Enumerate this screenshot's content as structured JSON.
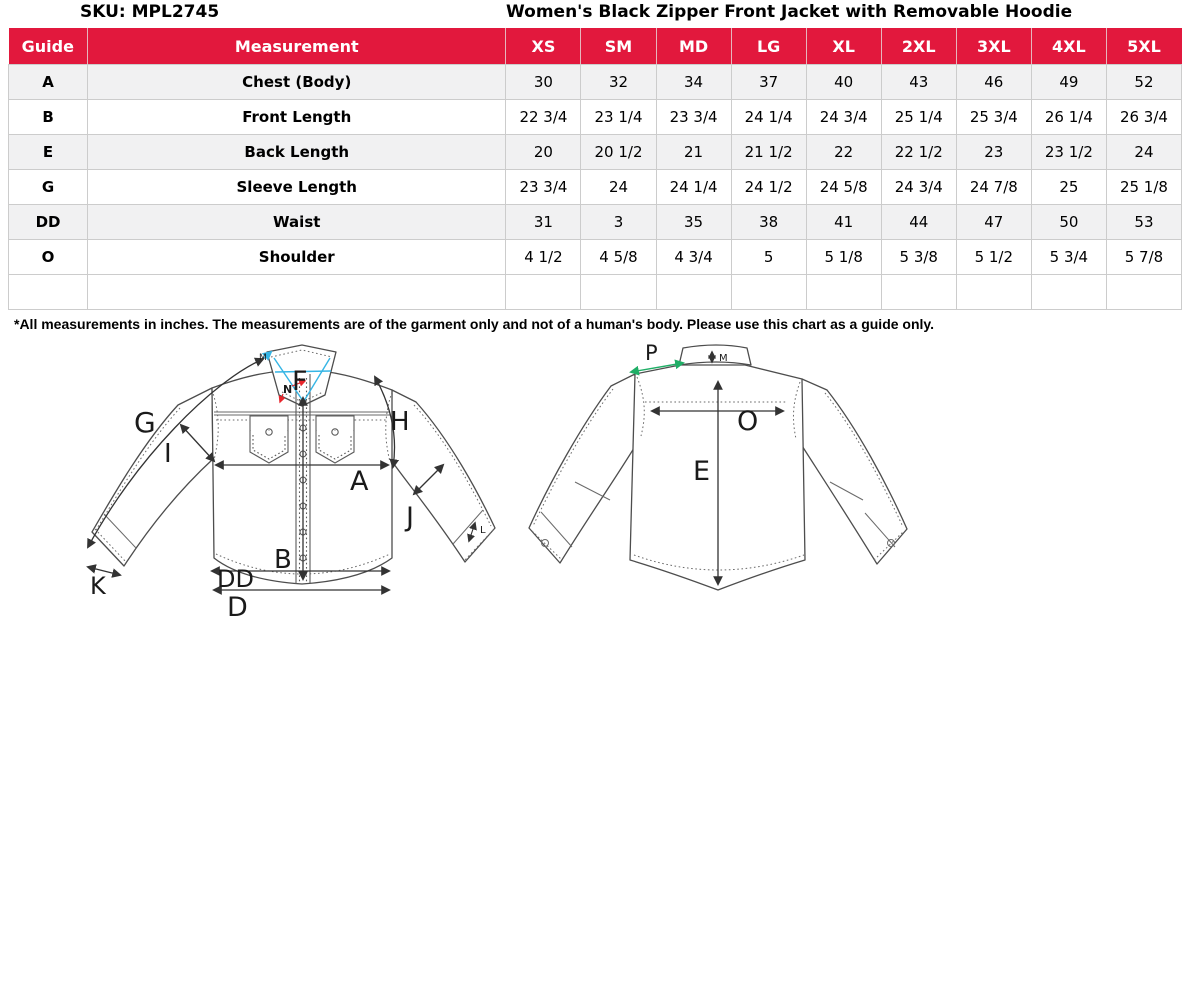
{
  "header": {
    "sku": "SKU: MPL2745",
    "title": "Women's Black Zipper Front Jacket with Removable Hoodie"
  },
  "table": {
    "columns": [
      "Guide",
      "Measurement",
      "XS",
      "SM",
      "MD",
      "LG",
      "XL",
      "2XL",
      "3XL",
      "4XL",
      "5XL"
    ],
    "rows": [
      {
        "guide": "A",
        "measurement": "Chest (Body)",
        "values": [
          "30",
          "32",
          "34",
          "37",
          "40",
          "43",
          "46",
          "49",
          "52"
        ]
      },
      {
        "guide": "B",
        "measurement": "Front Length",
        "values": [
          "22 3/4",
          "23 1/4",
          "23 3/4",
          "24 1/4",
          "24 3/4",
          "25 1/4",
          "25 3/4",
          "26 1/4",
          "26 3/4"
        ]
      },
      {
        "guide": "E",
        "measurement": "Back Length",
        "values": [
          "20",
          "20 1/2",
          "21",
          "21 1/2",
          "22",
          "22 1/2",
          "23",
          "23 1/2",
          "24"
        ]
      },
      {
        "guide": "G",
        "measurement": "Sleeve Length",
        "values": [
          "23 3/4",
          "24",
          "24 1/4",
          "24 1/2",
          "24 5/8",
          "24 3/4",
          "24 7/8",
          "25",
          "25 1/8"
        ]
      },
      {
        "guide": "DD",
        "measurement": "Waist",
        "values": [
          "31",
          "3",
          "35",
          "38",
          "41",
          "44",
          "47",
          "50",
          "53"
        ]
      },
      {
        "guide": "O",
        "measurement": "Shoulder",
        "values": [
          "4 1/2",
          "4 5/8",
          "4 3/4",
          "5",
          "5 1/8",
          "5 3/8",
          "5 1/2",
          "5 3/4",
          "5 7/8"
        ]
      },
      {
        "guide": "",
        "measurement": "",
        "values": [
          "",
          "",
          "",
          "",
          "",
          "",
          "",
          "",
          ""
        ]
      }
    ],
    "footnote": "*All measurements in inches. The measurements are of the garment only and not of a human's body. Please use this chart as a guide only."
  },
  "colors": {
    "header_bg": "#E2183D",
    "row_alt": "#F1F1F2",
    "cell_border": "#CCCCCC",
    "drawing_line": "#4D4D4D",
    "cyan_label": "#35B5E5",
    "green_label": "#1FAE66",
    "red_label": "#E8252C"
  },
  "front_diagram": {
    "labels": {
      "g": "G",
      "i": "I",
      "f": "F",
      "m": "M",
      "n": "N",
      "h": "H",
      "a": "A",
      "j": "J",
      "b": "B",
      "k": "K",
      "dd": "DD",
      "d": "D",
      "l": "L"
    }
  },
  "back_diagram": {
    "labels": {
      "p": "P",
      "m": "M",
      "o": "O",
      "e": "E"
    }
  }
}
